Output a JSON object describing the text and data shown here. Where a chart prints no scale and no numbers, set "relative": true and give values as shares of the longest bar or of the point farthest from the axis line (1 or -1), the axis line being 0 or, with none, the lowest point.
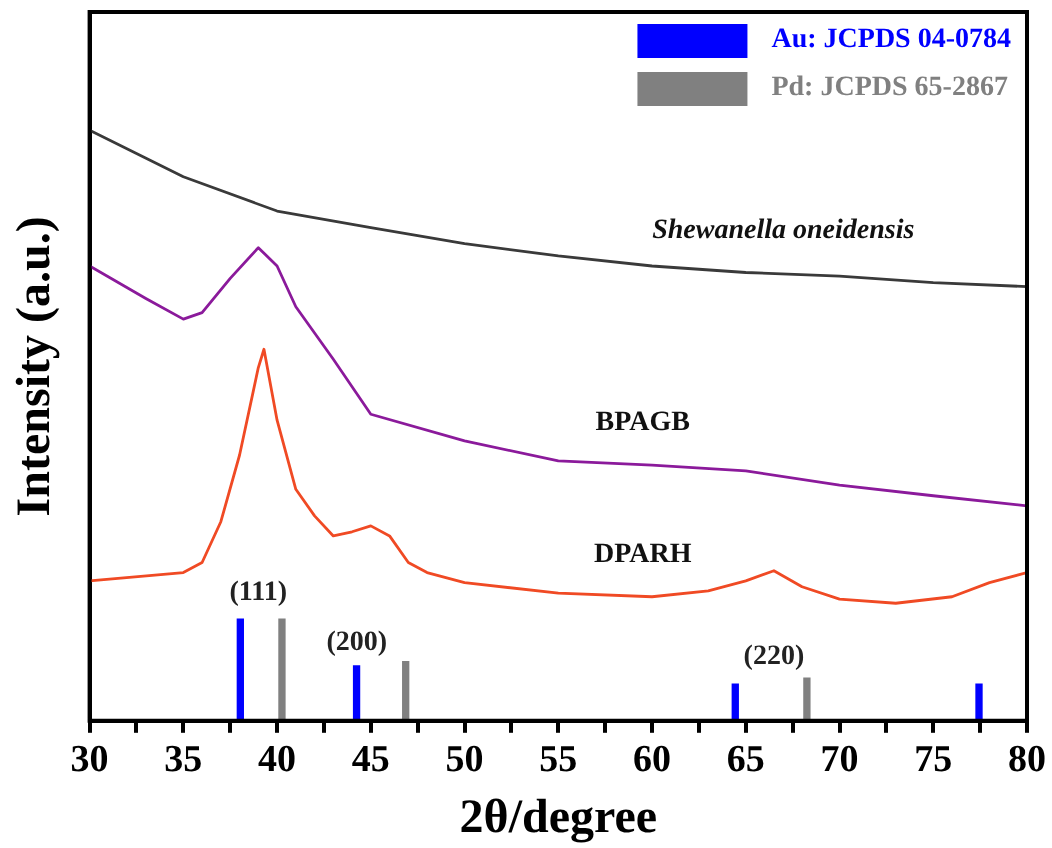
{
  "chart_data": {
    "type": "line",
    "relative": true,
    "xlabel": "2θ/degree",
    "ylabel": "Intensity (a.u.)",
    "xlim": [
      30,
      80
    ],
    "xticks": [
      30,
      {
        "value": 32.5,
        "label": null
      },
      35,
      {
        "value": 37.5,
        "label": null
      },
      40,
      {
        "value": 42.5,
        "label": null
      },
      45,
      {
        "value": 47.5,
        "label": null
      },
      50,
      {
        "value": 52.5,
        "label": null
      },
      55,
      {
        "value": 57.5,
        "label": null
      },
      60,
      {
        "value": 62.5,
        "label": null
      },
      65,
      {
        "value": 67.5,
        "label": null
      },
      70,
      {
        "value": 72.5,
        "label": null
      },
      75,
      {
        "value": 77.5,
        "label": null
      },
      80
    ],
    "grid": false,
    "legend": "top right",
    "marker": "none",
    "line_style": "solid",
    "series": [
      {
        "name": "Shewanella oneidensis",
        "color": "#3a3a3a",
        "x": [
          30,
          35,
          40,
          45,
          50,
          55,
          60,
          65,
          70,
          75,
          80
        ],
        "values": [
          1.0,
          0.921,
          0.863,
          0.835,
          0.808,
          0.787,
          0.77,
          0.759,
          0.753,
          0.742,
          0.735
        ]
      },
      {
        "name": "BPAGB",
        "color": "#8b1a9b",
        "x": [
          30,
          33,
          35,
          36,
          37.5,
          39,
          40,
          41,
          43,
          45,
          50,
          55,
          60,
          65,
          70,
          75,
          80
        ],
        "values": [
          0.77,
          0.715,
          0.68,
          0.691,
          0.749,
          0.801,
          0.77,
          0.701,
          0.612,
          0.519,
          0.474,
          0.44,
          0.433,
          0.423,
          0.399,
          0.381,
          0.364
        ]
      },
      {
        "name": "DPARH",
        "color": "#f04a24",
        "x": [
          30,
          35,
          36,
          37,
          38,
          39,
          39.3,
          40,
          41,
          42,
          43,
          44,
          45,
          46,
          47,
          48,
          50,
          55,
          60,
          63,
          65,
          66.5,
          68,
          70,
          73,
          76,
          78,
          80
        ],
        "values": [
          0.237,
          0.251,
          0.268,
          0.337,
          0.45,
          0.598,
          0.629,
          0.509,
          0.392,
          0.347,
          0.313,
          0.32,
          0.33,
          0.313,
          0.268,
          0.251,
          0.234,
          0.216,
          0.21,
          0.22,
          0.237,
          0.254,
          0.227,
          0.206,
          0.199,
          0.21,
          0.234,
          0.251
        ]
      },
      {
        "name": "Au: JCPDS 04-0784",
        "type": "bar",
        "color": "#0000ff",
        "x": [
          38.2,
          44.4,
          64.6,
          77.6
        ],
        "values": [
          0.172,
          0.093,
          0.062,
          0.062
        ]
      },
      {
        "name": "Pd: JCPDS 65-2867",
        "type": "bar",
        "color": "#808080",
        "x": [
          40.1,
          46.7,
          68.1
        ],
        "values": [
          0.172,
          0.1,
          0.072
        ]
      }
    ],
    "annotations": [
      "(111)",
      "(200)",
      "(220)"
    ]
  }
}
